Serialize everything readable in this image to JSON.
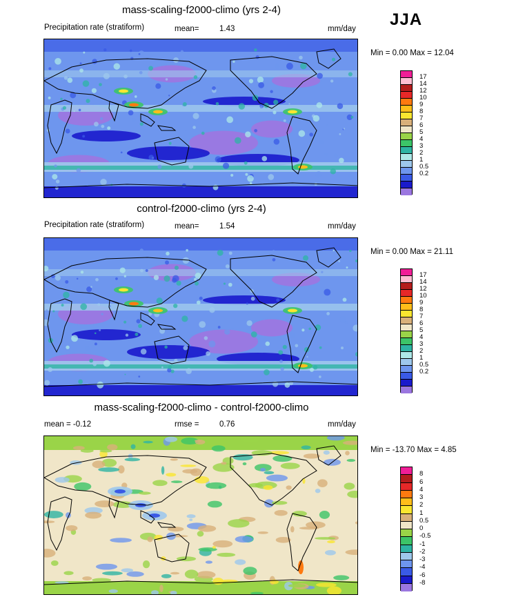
{
  "season": "JJA",
  "colors": {
    "precip": [
      "#9b77e0",
      "#1a1acc",
      "#3a5ae6",
      "#6e96ee",
      "#9ec8ec",
      "#aee8e8",
      "#2eb4a4",
      "#3cc468",
      "#9ad448",
      "#f0e6c8",
      "#d8b07a",
      "#fae630",
      "#ffbe1a",
      "#fe7a10",
      "#e62828",
      "#b41c1c",
      "#ffbed2",
      "#f01e96"
    ],
    "diff": [
      "#9b77e0",
      "#1a1acc",
      "#3a5ae6",
      "#6e96ee",
      "#9ec8ec",
      "#2eb4a4",
      "#3cc468",
      "#9ad448",
      "#f0e6c8",
      "#d8b07a",
      "#fae630",
      "#ffbe1a",
      "#fe7a10",
      "#e62828",
      "#b41c1c",
      "#f01e96"
    ]
  },
  "panels": [
    {
      "title": "mass-scaling-f2000-climo (yrs 2-4)",
      "left_label": "Precipitation rate (stratiform)",
      "mean_label": "mean=",
      "mean_value": "1.43",
      "units": "mm/day",
      "minmax": "Min =   0.00 Max =  12.04",
      "levels": [
        "17",
        "14",
        "12",
        "10",
        "9",
        "8",
        "7",
        "6",
        "5",
        "4",
        "3",
        "2",
        "1",
        "0.5",
        "0.2"
      ]
    },
    {
      "title": "control-f2000-climo (yrs 2-4)",
      "left_label": "Precipitation rate (stratiform)",
      "mean_label": "mean=",
      "mean_value": "1.54",
      "units": "mm/day",
      "minmax": "Min =   0.00 Max =  21.11",
      "levels": [
        "17",
        "14",
        "12",
        "10",
        "9",
        "8",
        "7",
        "6",
        "5",
        "4",
        "3",
        "2",
        "1",
        "0.5",
        "0.2"
      ]
    },
    {
      "title": "mass-scaling-f2000-climo - control-f2000-climo",
      "left_label": "mean =  -0.12",
      "rmse_label": "rmse =",
      "rmse_value": "0.76",
      "units": "mm/day",
      "minmax": "Min = -13.70 Max =    4.85",
      "levels": [
        "8",
        "6",
        "4",
        "3",
        "2",
        "1",
        "0.5",
        "0",
        "-0.5",
        "-1",
        "-2",
        "-3",
        "-4",
        "-6",
        "-8"
      ]
    }
  ]
}
